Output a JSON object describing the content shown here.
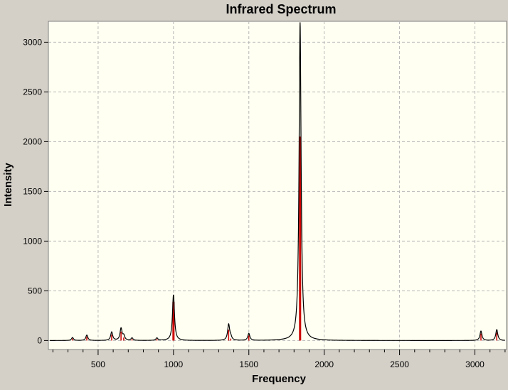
{
  "chart_data": {
    "type": "line",
    "title": "Infrared Spectrum",
    "xlabel": "Frequency",
    "ylabel": "Intensity",
    "xlim": [
      170,
      3210
    ],
    "ylim": [
      -90,
      3210
    ],
    "xticks": [
      500,
      1000,
      1500,
      2000,
      2500,
      3000
    ],
    "yticks": [
      0,
      500,
      1000,
      1500,
      2000,
      2500,
      3000
    ],
    "grid": true,
    "colors": {
      "line": "#000000",
      "sticks": "#cc0000",
      "plot_bg": "#fffff2",
      "grid": "#b8b8b8"
    },
    "peaks": [
      {
        "freq": 330,
        "intensity": 30,
        "stick": 20
      },
      {
        "freq": 425,
        "intensity": 55,
        "stick": 40
      },
      {
        "freq": 590,
        "intensity": 85,
        "stick": 60
      },
      {
        "freq": 652,
        "intensity": 120,
        "stick": 90
      },
      {
        "freq": 670,
        "intensity": 45,
        "stick": 30
      },
      {
        "freq": 725,
        "intensity": 25,
        "stick": 15
      },
      {
        "freq": 890,
        "intensity": 25,
        "stick": 15
      },
      {
        "freq": 1000,
        "intensity": 460,
        "stick": 390
      },
      {
        "freq": 1366,
        "intensity": 160,
        "stick": 110
      },
      {
        "freq": 1380,
        "intensity": 30,
        "stick": 20
      },
      {
        "freq": 1500,
        "intensity": 70,
        "stick": 50
      },
      {
        "freq": 1840,
        "intensity": 3200,
        "stick": 2050
      },
      {
        "freq": 3040,
        "intensity": 95,
        "stick": 70
      },
      {
        "freq": 3145,
        "intensity": 110,
        "stick": 80
      }
    ]
  }
}
